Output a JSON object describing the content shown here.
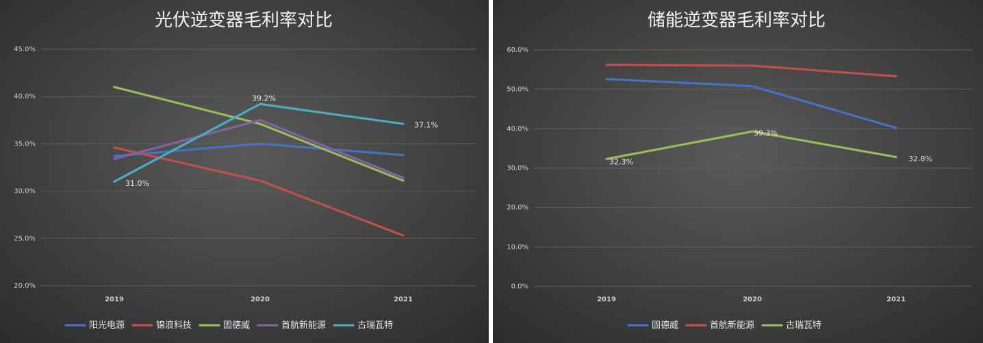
{
  "chart_data": [
    {
      "type": "line",
      "title": "光伏逆变器毛利率对比",
      "categories": [
        "2019",
        "2020",
        "2021"
      ],
      "ylim": [
        20,
        45
      ],
      "yticks": [
        "20.0%",
        "25.0%",
        "30.0%",
        "35.0%",
        "40.0%",
        "45.0%"
      ],
      "grid": true,
      "legend": "bottom",
      "series": [
        {
          "name": "阳光电源",
          "values": [
            33.7,
            35.0,
            33.8
          ],
          "color": "#4472c4"
        },
        {
          "name": "锦浪科技",
          "values": [
            34.6,
            31.1,
            25.3
          ],
          "color": "#c0504d"
        },
        {
          "name": "固德威",
          "values": [
            41.0,
            37.1,
            31.1
          ],
          "color": "#9bbb59"
        },
        {
          "name": "首航新能源",
          "values": [
            33.4,
            37.5,
            31.4
          ],
          "color": "#8064a2"
        },
        {
          "name": "古瑞瓦特",
          "values": [
            31.0,
            39.2,
            37.1
          ],
          "color": "#4bacc6"
        }
      ],
      "data_labels": [
        {
          "series": 4,
          "index": 0,
          "text": "31.0%"
        },
        {
          "series": 4,
          "index": 1,
          "text": "39.2%"
        },
        {
          "series": 4,
          "index": 2,
          "text": "37.1%"
        }
      ]
    },
    {
      "type": "line",
      "title": "储能逆变器毛利率对比",
      "categories": [
        "2019",
        "2020",
        "2021"
      ],
      "ylim": [
        0,
        60
      ],
      "yticks": [
        "0.0%",
        "10.0%",
        "20.0%",
        "30.0%",
        "40.0%",
        "50.0%",
        "60.0%"
      ],
      "grid": true,
      "legend": "bottom",
      "series": [
        {
          "name": "固德威",
          "values": [
            52.6,
            50.8,
            40.2
          ],
          "color": "#4472c4"
        },
        {
          "name": "首航新能源",
          "values": [
            56.2,
            56.0,
            53.3
          ],
          "color": "#c0504d"
        },
        {
          "name": "古瑞瓦特",
          "values": [
            32.3,
            39.3,
            32.8
          ],
          "color": "#9bbb59"
        }
      ],
      "data_labels": [
        {
          "series": 2,
          "index": 0,
          "text": "32.3%"
        },
        {
          "series": 2,
          "index": 1,
          "text": "39.3%"
        },
        {
          "series": 2,
          "index": 2,
          "text": "32.8%"
        }
      ]
    }
  ]
}
